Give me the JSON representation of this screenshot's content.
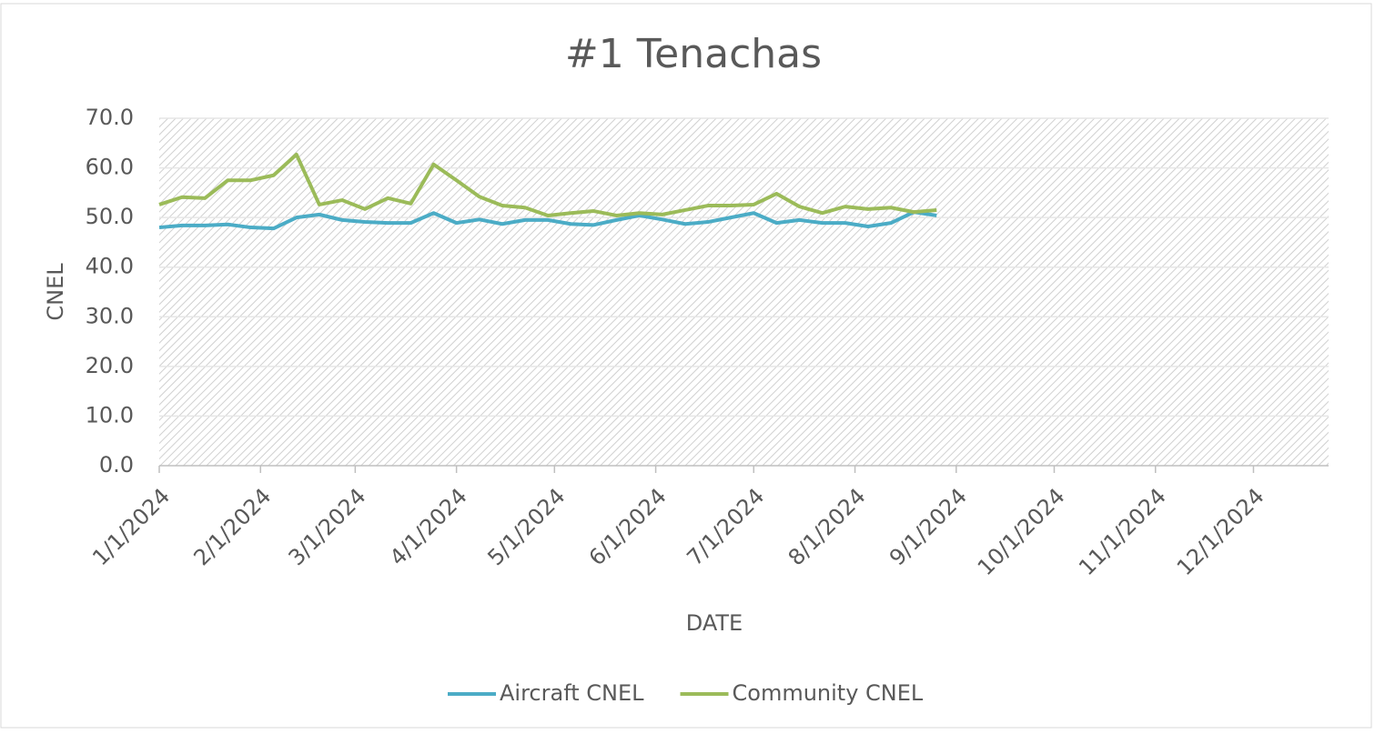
{
  "chart_data": {
    "type": "line",
    "title": "#1 Tenachas",
    "x_label": "DATE",
    "y_label": "CNEL",
    "x": [
      "1/1/2024",
      "1/8/2024",
      "1/15/2024",
      "1/22/2024",
      "1/29/2024",
      "2/5/2024",
      "2/12/2024",
      "2/19/2024",
      "2/26/2024",
      "3/4/2024",
      "3/11/2024",
      "3/18/2024",
      "3/25/2024",
      "4/1/2024",
      "4/8/2024",
      "4/15/2024",
      "4/22/2024",
      "4/29/2024",
      "5/6/2024",
      "5/13/2024",
      "5/20/2024",
      "5/27/2024",
      "6/3/2024",
      "6/10/2024",
      "6/17/2024",
      "6/24/2024",
      "7/1/2024",
      "7/8/2024",
      "7/15/2024",
      "7/22/2024",
      "7/29/2024",
      "8/5/2024",
      "8/12/2024",
      "8/19/2024",
      "8/26/2024"
    ],
    "series": [
      {
        "name": "Aircraft CNEL",
        "color": "#4bacc6",
        "values": [
          48.0,
          48.4,
          48.4,
          48.6,
          48.0,
          47.8,
          50.0,
          50.6,
          49.5,
          49.1,
          48.9,
          48.9,
          50.9,
          48.9,
          49.6,
          48.7,
          49.5,
          49.5,
          48.7,
          48.5,
          49.5,
          50.4,
          49.6,
          48.7,
          49.1,
          50.0,
          50.9,
          48.9,
          49.5,
          48.9,
          48.9,
          48.2,
          48.9,
          51.1,
          50.4
        ]
      },
      {
        "name": "Community CNEL",
        "color": "#9bbb59",
        "values": [
          52.6,
          54.1,
          53.9,
          57.5,
          57.5,
          58.5,
          62.7,
          52.6,
          53.5,
          51.7,
          53.9,
          52.8,
          60.7,
          57.5,
          54.2,
          52.4,
          52.0,
          50.4,
          50.9,
          51.3,
          50.4,
          50.9,
          50.6,
          51.5,
          52.4,
          52.4,
          52.6,
          54.8,
          52.2,
          50.9,
          52.2,
          51.7,
          52.0,
          51.1,
          51.5
        ]
      }
    ],
    "xlim": [
      "1/1/2024",
      "12/24/2024"
    ],
    "xticks": [
      "1/1/2024",
      "2/1/2024",
      "3/1/2024",
      "4/1/2024",
      "5/1/2024",
      "6/1/2024",
      "7/1/2024",
      "8/1/2024",
      "9/1/2024",
      "10/1/2024",
      "11/1/2024",
      "12/1/2024"
    ],
    "ylim": [
      0,
      70
    ],
    "yticks": [
      {
        "value": 0,
        "label": "0.0"
      },
      {
        "value": 10,
        "label": "10.0"
      },
      {
        "value": 20,
        "label": "20.0"
      },
      {
        "value": 30,
        "label": "30.0"
      },
      {
        "value": 40,
        "label": "40.0"
      },
      {
        "value": 50,
        "label": "50.0"
      },
      {
        "value": 60,
        "label": "60.0"
      },
      {
        "value": 70,
        "label": "70.0"
      }
    ],
    "grid": true,
    "legend": "bottom"
  }
}
